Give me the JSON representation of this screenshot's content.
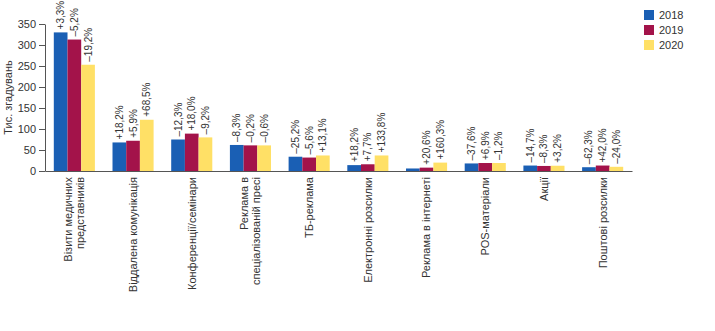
{
  "chart_data": {
    "type": "bar",
    "y_label": "Тис. згадувань",
    "categories": [
      "Візити медичних\nпредставників",
      "Віддалена комунікація",
      "Конференції/семінари",
      "Реклама в\nспеціалізованій пресі",
      "ТБ-реклама",
      "Електронні розсилки",
      "Реклама в інтернеті",
      "POS-матеріали",
      "Акції",
      "Поштові розсилки"
    ],
    "series": [
      {
        "name": "2018",
        "color": "#1a5fb4",
        "values": [
          330,
          68,
          75,
          62,
          34,
          14,
          6,
          18,
          13,
          9
        ],
        "annotations": [
          "+3,3%",
          "+18,2%",
          "–12,3%",
          "–8,3%",
          "–25,2%",
          "+18,2%",
          null,
          "–37,6%",
          "–14,7%",
          "–62,3%"
        ]
      },
      {
        "name": "2019",
        "color": "#a3134a",
        "values": [
          313,
          72,
          89,
          61,
          32,
          16,
          8,
          19,
          12,
          13
        ],
        "annotations": [
          "–5,2%",
          "+5,9%",
          "+18,0%",
          "–0,2%",
          "–5,6%",
          "+7,7%",
          "+20,6%",
          "+6,9%",
          "–8,3%",
          "+42,0%"
        ]
      },
      {
        "name": "2020",
        "color": "#ffe066",
        "values": [
          253,
          122,
          80,
          61,
          37,
          37,
          20,
          19,
          12.5,
          10
        ],
        "annotations": [
          "–19,2%",
          "+68,5%",
          "–9,2%",
          "–0,6%",
          "+13,1%",
          "+133,8%",
          "+160,3%",
          "–1,2%",
          "+3,2%",
          "–24,0%"
        ]
      }
    ],
    "ylim": [
      0,
      350
    ],
    "yticks": [
      0,
      50,
      100,
      150,
      200,
      250,
      300,
      350
    ],
    "grid": false,
    "legend": "top-right"
  }
}
